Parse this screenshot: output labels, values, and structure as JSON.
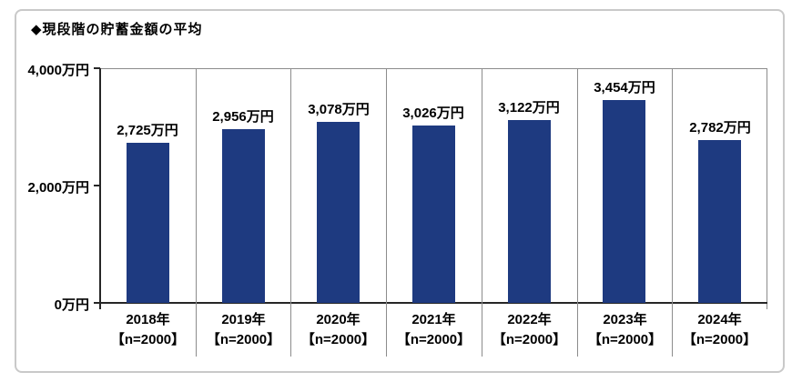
{
  "title": {
    "text": "◆現段階の貯蓄金額の平均"
  },
  "colors": {
    "bar": "#1e3a80",
    "axis": "#262626",
    "divider": "#8c8c8c",
    "frame_border": "#c9c9c9",
    "text": "#000000",
    "background": "#ffffff"
  },
  "chart_data": {
    "type": "bar",
    "title": "現段階の貯蓄金額の平均",
    "unit": "万円",
    "categories": [
      "2018年",
      "2019年",
      "2020年",
      "2021年",
      "2022年",
      "2023年",
      "2024年"
    ],
    "sample_labels": [
      "【n=2000】",
      "【n=2000】",
      "【n=2000】",
      "【n=2000】",
      "【n=2000】",
      "【n=2000】",
      "【n=2000】"
    ],
    "values": [
      2725,
      2956,
      3078,
      3026,
      3122,
      3454,
      2782
    ],
    "value_labels": [
      "2,725万円",
      "2,956万円",
      "3,078万円",
      "3,026万円",
      "3,122万円",
      "3,454万円",
      "2,782万円"
    ],
    "ylim": [
      0,
      4000
    ],
    "yticks": [
      {
        "value": 0,
        "label": "0万円"
      },
      {
        "value": 2000,
        "label": "2,000万円"
      },
      {
        "value": 4000,
        "label": "4,000万円"
      }
    ],
    "xlabel": "",
    "ylabel": "",
    "legend": "none",
    "grid": "category-dividers"
  }
}
